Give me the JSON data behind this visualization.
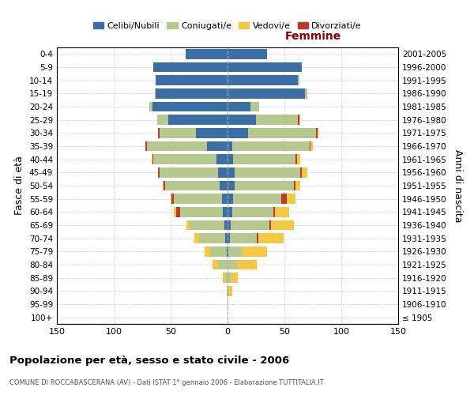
{
  "age_groups": [
    "100+",
    "95-99",
    "90-94",
    "85-89",
    "80-84",
    "75-79",
    "70-74",
    "65-69",
    "60-64",
    "55-59",
    "50-54",
    "45-49",
    "40-44",
    "35-39",
    "30-34",
    "25-29",
    "20-24",
    "15-19",
    "10-14",
    "5-9",
    "0-4"
  ],
  "birth_years": [
    "≤ 1905",
    "1906-1910",
    "1911-1915",
    "1916-1920",
    "1921-1925",
    "1926-1930",
    "1931-1935",
    "1936-1940",
    "1941-1945",
    "1946-1950",
    "1951-1955",
    "1956-1960",
    "1961-1965",
    "1966-1970",
    "1971-1975",
    "1976-1980",
    "1981-1985",
    "1986-1990",
    "1991-1995",
    "1996-2000",
    "2001-2005"
  ],
  "males": {
    "celibi": [
      0,
      0,
      0,
      0,
      0,
      1,
      2,
      3,
      4,
      5,
      7,
      8,
      10,
      18,
      28,
      52,
      66,
      63,
      63,
      65,
      37
    ],
    "coniugati": [
      0,
      0,
      1,
      2,
      8,
      14,
      23,
      30,
      38,
      42,
      48,
      52,
      55,
      53,
      32,
      10,
      3,
      1,
      0,
      0,
      0
    ],
    "vedovi": [
      0,
      0,
      0,
      2,
      5,
      5,
      4,
      3,
      2,
      1,
      1,
      0,
      1,
      0,
      0,
      0,
      0,
      0,
      0,
      0,
      0
    ],
    "divorziati": [
      0,
      0,
      0,
      0,
      0,
      0,
      0,
      0,
      3,
      2,
      1,
      1,
      1,
      1,
      1,
      0,
      0,
      0,
      0,
      0,
      0
    ]
  },
  "females": {
    "nubili": [
      0,
      0,
      0,
      0,
      0,
      1,
      2,
      3,
      4,
      5,
      6,
      6,
      5,
      4,
      18,
      25,
      20,
      68,
      62,
      65,
      35
    ],
    "coniugate": [
      0,
      0,
      1,
      3,
      8,
      12,
      24,
      34,
      36,
      42,
      52,
      58,
      55,
      68,
      60,
      37,
      8,
      2,
      1,
      0,
      0
    ],
    "vedove": [
      0,
      1,
      3,
      6,
      18,
      22,
      22,
      20,
      12,
      8,
      4,
      5,
      3,
      2,
      1,
      1,
      0,
      0,
      0,
      0,
      0
    ],
    "divorziate": [
      0,
      0,
      0,
      0,
      0,
      0,
      1,
      1,
      2,
      5,
      2,
      1,
      1,
      1,
      1,
      1,
      0,
      0,
      0,
      0,
      0
    ]
  },
  "colors": {
    "celibi_nubili": "#3B6EA5",
    "coniugati_e": "#B5C98E",
    "vedovi_e": "#F5C842",
    "divorziati_e": "#C0392B"
  },
  "title": "Popolazione per età, sesso e stato civile - 2006",
  "subtitle": "COMUNE DI ROCCABASCERANA (AV) - Dati ISTAT 1° gennaio 2006 - Elaborazione TUTTITALIA.IT",
  "xlabel_right": "Femmine",
  "ylabel_left": "Fasce di età",
  "ylabel_right": "Anni di nascita",
  "xlim": 150,
  "background_color": "#ffffff",
  "grid_color": "#cccccc"
}
